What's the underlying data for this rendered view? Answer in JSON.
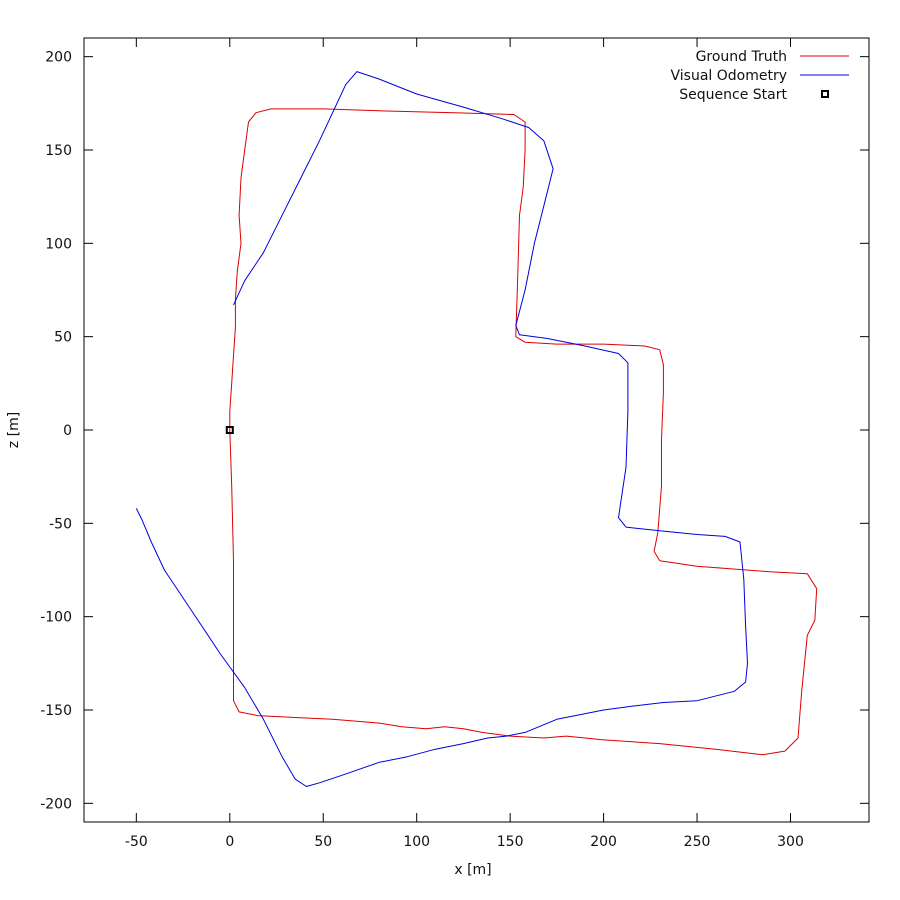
{
  "chart_data": {
    "type": "line",
    "title": "",
    "xlabel": "x [m]",
    "ylabel": "z [m]",
    "xlim": [
      -78,
      342
    ],
    "ylim": [
      -210,
      210
    ],
    "xticks": [
      -50,
      0,
      50,
      100,
      150,
      200,
      250,
      300
    ],
    "yticks": [
      -200,
      -150,
      -100,
      -50,
      0,
      50,
      100,
      150,
      200
    ],
    "grid": false,
    "legend_position": "top-right",
    "series": [
      {
        "name": "Ground Truth",
        "color": "#dd0000",
        "points": [
          [
            0,
            0
          ],
          [
            1,
            -30
          ],
          [
            2,
            -70
          ],
          [
            2,
            -110
          ],
          [
            2,
            -145
          ],
          [
            5,
            -151
          ],
          [
            15,
            -153
          ],
          [
            35,
            -154
          ],
          [
            55,
            -155
          ],
          [
            80,
            -157
          ],
          [
            92,
            -159
          ],
          [
            105,
            -160
          ],
          [
            115,
            -159
          ],
          [
            125,
            -160
          ],
          [
            135,
            -162
          ],
          [
            150,
            -164
          ],
          [
            168,
            -165
          ],
          [
            180,
            -164
          ],
          [
            200,
            -166
          ],
          [
            230,
            -168
          ],
          [
            260,
            -171
          ],
          [
            285,
            -174
          ],
          [
            297,
            -172
          ],
          [
            304,
            -165
          ],
          [
            306,
            -140
          ],
          [
            309,
            -110
          ],
          [
            313,
            -102
          ],
          [
            314,
            -85
          ],
          [
            309,
            -77
          ],
          [
            290,
            -76
          ],
          [
            250,
            -73
          ],
          [
            230,
            -70
          ],
          [
            227,
            -65
          ],
          [
            229,
            -55
          ],
          [
            231,
            -30
          ],
          [
            231,
            -5
          ],
          [
            232,
            20
          ],
          [
            232,
            35
          ],
          [
            230,
            43
          ],
          [
            222,
            45
          ],
          [
            200,
            46
          ],
          [
            175,
            46
          ],
          [
            158,
            47
          ],
          [
            153,
            50
          ],
          [
            154,
            80
          ],
          [
            155,
            115
          ],
          [
            157,
            130
          ],
          [
            158,
            150
          ],
          [
            158,
            165
          ],
          [
            152,
            169
          ],
          [
            120,
            170
          ],
          [
            80,
            171
          ],
          [
            50,
            172
          ],
          [
            22,
            172
          ],
          [
            14,
            170
          ],
          [
            10,
            165
          ],
          [
            8,
            150
          ],
          [
            6,
            135
          ],
          [
            5,
            115
          ],
          [
            6,
            100
          ],
          [
            4,
            85
          ],
          [
            3,
            70
          ],
          [
            3,
            55
          ],
          [
            2,
            40
          ],
          [
            1,
            25
          ],
          [
            0,
            10
          ],
          [
            0,
            0
          ]
        ]
      },
      {
        "name": "Visual Odometry",
        "color": "#0000dd",
        "points": [
          [
            2,
            67
          ],
          [
            8,
            80
          ],
          [
            18,
            95
          ],
          [
            28,
            115
          ],
          [
            38,
            135
          ],
          [
            48,
            155
          ],
          [
            55,
            170
          ],
          [
            62,
            185
          ],
          [
            68,
            192
          ],
          [
            80,
            188
          ],
          [
            100,
            180
          ],
          [
            125,
            173
          ],
          [
            145,
            167
          ],
          [
            160,
            162
          ],
          [
            168,
            155
          ],
          [
            173,
            140
          ],
          [
            168,
            120
          ],
          [
            163,
            100
          ],
          [
            158,
            75
          ],
          [
            153,
            56
          ],
          [
            155,
            51
          ],
          [
            170,
            49
          ],
          [
            190,
            45
          ],
          [
            208,
            41
          ],
          [
            213,
            36
          ],
          [
            213,
            10
          ],
          [
            212,
            -20
          ],
          [
            209,
            -40
          ],
          [
            208,
            -47
          ],
          [
            212,
            -52
          ],
          [
            230,
            -54
          ],
          [
            250,
            -56
          ],
          [
            265,
            -57
          ],
          [
            273,
            -60
          ],
          [
            275,
            -80
          ],
          [
            276,
            -105
          ],
          [
            277,
            -125
          ],
          [
            276,
            -135
          ],
          [
            270,
            -140
          ],
          [
            250,
            -145
          ],
          [
            232,
            -146
          ],
          [
            215,
            -148
          ],
          [
            200,
            -150
          ],
          [
            175,
            -155
          ],
          [
            158,
            -162
          ],
          [
            148,
            -164
          ],
          [
            138,
            -165
          ],
          [
            125,
            -168
          ],
          [
            110,
            -171
          ],
          [
            95,
            -175
          ],
          [
            80,
            -178
          ],
          [
            60,
            -185
          ],
          [
            48,
            -189
          ],
          [
            41,
            -191
          ],
          [
            35,
            -187
          ],
          [
            28,
            -175
          ],
          [
            18,
            -155
          ],
          [
            8,
            -138
          ],
          [
            -5,
            -120
          ],
          [
            -15,
            -105
          ],
          [
            -25,
            -90
          ],
          [
            -35,
            -75
          ],
          [
            -42,
            -60
          ],
          [
            -47,
            -48
          ],
          [
            -50,
            -42
          ]
        ]
      },
      {
        "name": "Sequence Start",
        "color": "#000000",
        "marker": "square",
        "points": [
          [
            0,
            0
          ]
        ]
      }
    ]
  }
}
